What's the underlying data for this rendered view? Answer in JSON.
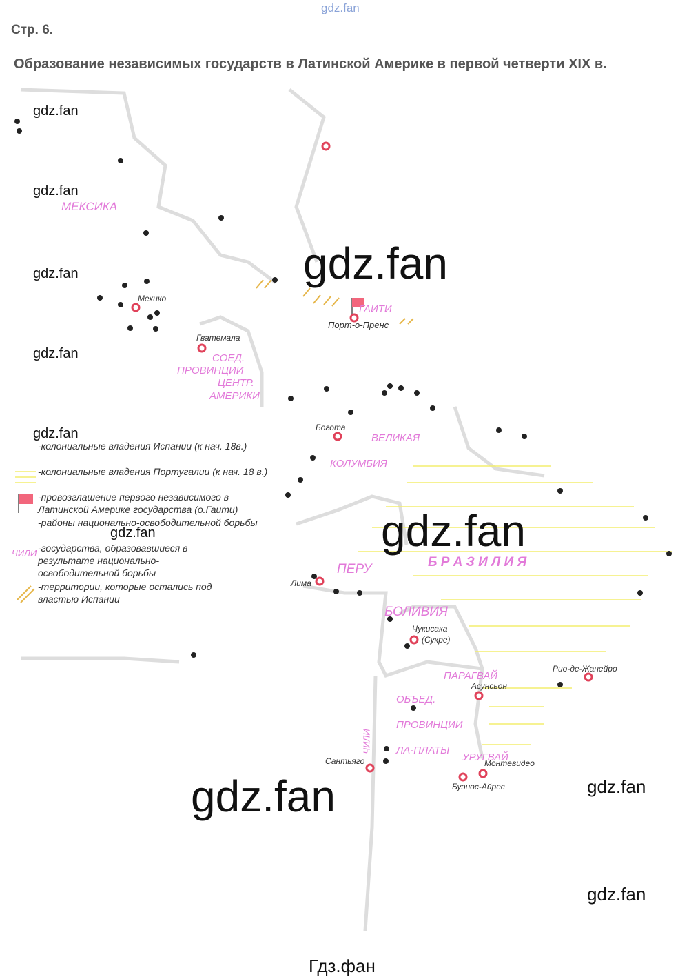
{
  "header": {
    "site": "gdz.fan",
    "page": "Стр. 6.",
    "title": "Образование независимых государств в Латинской Америке в первой четверти XIX в."
  },
  "map": {
    "countries": [
      "МЕКСИКА",
      "ГАИТИ",
      "СОЕД.",
      "ПРОВИНЦИИ",
      "ЦЕНТР.",
      "АМЕРИКИ",
      "ВЕЛИКАЯ",
      "КОЛУМБИЯ",
      "ПЕРУ",
      "Б Р А З И Л И Я",
      "БОЛИВИЯ",
      "ПАРАГВАЙ",
      "ОБЪЕД.",
      "ПРОВИНЦИИ",
      "ЛА-ПЛАТЫ",
      "ЧИЛИ",
      "УРУГВАЙ"
    ],
    "cities": [
      "Мехико",
      "Порт-о-Пренс",
      "Гватемала",
      "Богота",
      "Лима",
      "Чукисака",
      "(Сукре)",
      "Асунсьон",
      "Рио-де-Жанейро",
      "Сантьяго",
      "Монтевидео",
      "Буэнос-Айрес"
    ]
  },
  "legend": {
    "items": [
      "-колониальные владения Испании (к нач. 18в.)",
      "-колониальные владения Португалии (к нач. 18 в.)",
      "-провозглашение первого независимого в Латинской Америке государства (о.Гаити)",
      "-районы национально-освободительной борьбы",
      "-государства, образовавшиеся в результате национально-освободительной борьбы",
      "-территории, которые остались под властью Испании"
    ],
    "sample": "ЧИЛИ"
  },
  "watermarks": [
    "gdz.fan",
    "gdz.fan",
    "gdz.fan",
    "gdz.fan",
    "gdz.fan",
    "gdz.fan",
    "gdz.fan",
    "gdz.fan",
    "gdz.fan",
    "gdz.fan",
    "gdz.fan"
  ],
  "footer": "Гдз.фан"
}
